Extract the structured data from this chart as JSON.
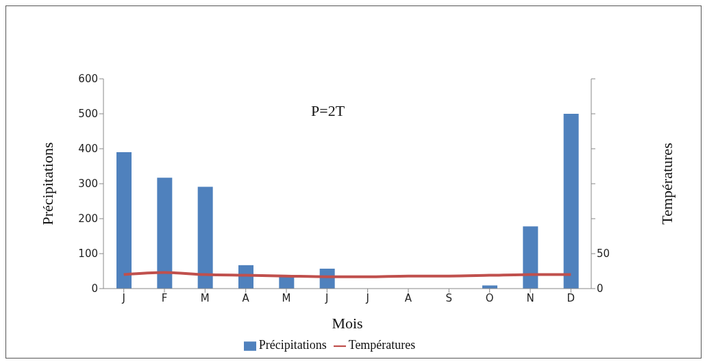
{
  "chart_data": {
    "type": "bar",
    "categories": [
      "J",
      "F",
      "M",
      "A",
      "M",
      "J",
      "J",
      "A",
      "S",
      "O",
      "N",
      "D"
    ],
    "series": [
      {
        "name": "Précipitations",
        "color": "#4f81bd",
        "values": [
          390,
          317,
          291,
          67,
          38,
          57,
          0,
          0,
          0,
          9,
          178,
          500
        ]
      },
      {
        "name": "Températures",
        "type": "line",
        "axis": "y2",
        "color": "#c0504d",
        "values": [
          20,
          23,
          20,
          19,
          18,
          17,
          17,
          18,
          18,
          19,
          20,
          20
        ]
      }
    ],
    "xlabel": "Mois",
    "ylabel": "Précipitations",
    "y2label": "Températures",
    "annotations": [
      "P=2T"
    ],
    "ylim": [
      0,
      600
    ],
    "yticks": [
      0,
      100,
      200,
      300,
      400,
      500,
      600
    ],
    "y2lim": [
      0,
      300
    ],
    "y2ticks": [
      0,
      50,
      {
        "value": 100,
        "label": null
      },
      {
        "value": 150,
        "label": null
      },
      {
        "value": 200,
        "label": null
      },
      {
        "value": 250,
        "label": null
      },
      {
        "value": 300,
        "label": null
      }
    ],
    "legend": "bottom",
    "marker": "none"
  }
}
